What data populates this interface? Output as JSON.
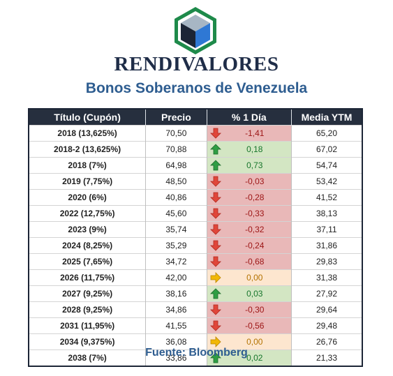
{
  "brand": {
    "name": "RENDIVALORES"
  },
  "title": "Bonos Soberanos de Venezuela",
  "table": {
    "headers": [
      "Título (Cupón)",
      "Precio",
      "% 1 Día",
      "Media YTM"
    ],
    "rows": [
      {
        "title": "2018 (13,625%)",
        "price": "70,50",
        "change": "-1,41",
        "direction": "down",
        "ytm": "65,20"
      },
      {
        "title": "2018-2 (13,625%)",
        "price": "70,88",
        "change": "0,18",
        "direction": "up",
        "ytm": "67,02"
      },
      {
        "title": "2018 (7%)",
        "price": "64,98",
        "change": "0,73",
        "direction": "up",
        "ytm": "54,74"
      },
      {
        "title": "2019 (7,75%)",
        "price": "48,50",
        "change": "-0,03",
        "direction": "down",
        "ytm": "53,42"
      },
      {
        "title": "2020 (6%)",
        "price": "40,86",
        "change": "-0,28",
        "direction": "down",
        "ytm": "41,52"
      },
      {
        "title": "2022 (12,75%)",
        "price": "45,60",
        "change": "-0,33",
        "direction": "down",
        "ytm": "38,13"
      },
      {
        "title": "2023 (9%)",
        "price": "35,74",
        "change": "-0,32",
        "direction": "down",
        "ytm": "37,11"
      },
      {
        "title": "2024 (8,25%)",
        "price": "35,29",
        "change": "-0,24",
        "direction": "down",
        "ytm": "31,86"
      },
      {
        "title": "2025 (7,65%)",
        "price": "34,72",
        "change": "-0,68",
        "direction": "down",
        "ytm": "29,83"
      },
      {
        "title": "2026 (11,75%)",
        "price": "42,00",
        "change": "0,00",
        "direction": "flat",
        "ytm": "31,38"
      },
      {
        "title": "2027 (9,25%)",
        "price": "38,16",
        "change": "0,03",
        "direction": "up",
        "ytm": "27,92"
      },
      {
        "title": "2028 (9,25%)",
        "price": "34,86",
        "change": "-0,30",
        "direction": "down",
        "ytm": "29,64"
      },
      {
        "title": "2031 (11,95%)",
        "price": "41,55",
        "change": "-0,56",
        "direction": "down",
        "ytm": "29,48"
      },
      {
        "title": "2034 (9,375%)",
        "price": "36,08",
        "change": "0,00",
        "direction": "flat",
        "ytm": "26,76"
      },
      {
        "title": "2038 (7%)",
        "price": "33,86",
        "change": "0,02",
        "direction": "up",
        "ytm": "21,33"
      }
    ]
  },
  "colors": {
    "header_bg": "#262f3e",
    "down_bg": "#e9b8b8",
    "up_bg": "#d3e6c3",
    "flat_bg": "#fde6cf",
    "down_arrow": "#e0463a",
    "up_arrow": "#2f9e44",
    "flat_arrow": "#f2b705",
    "title_text": "#2e5d90"
  },
  "icons": {
    "logo": "hexagon-cube-logo",
    "down": "arrow-down-icon",
    "up": "arrow-up-icon",
    "flat": "arrow-right-icon"
  },
  "footer": {
    "source": "Fuente: Bloomberg"
  }
}
